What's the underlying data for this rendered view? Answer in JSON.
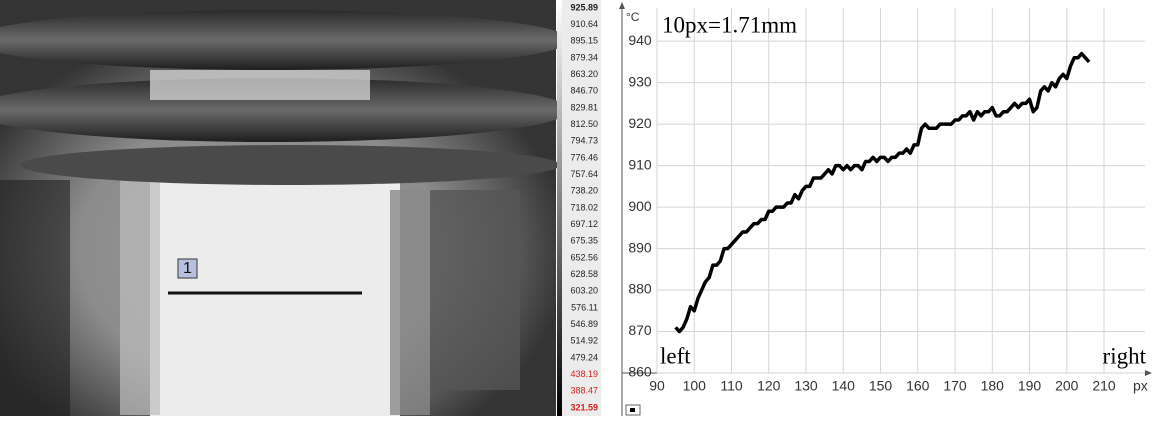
{
  "image": {
    "marker_label": "1"
  },
  "color_scale": {
    "labels": [
      "925.89",
      "910.64",
      "895.15",
      "879.34",
      "863.20",
      "846.70",
      "829.81",
      "812.50",
      "794.73",
      "776.46",
      "757.64",
      "738.20",
      "718.02",
      "697.12",
      "675.35",
      "652.56",
      "628.58",
      "603.20",
      "576.11",
      "546.89",
      "514.92",
      "479.24",
      "438.19",
      "388.47",
      "321.59"
    ]
  },
  "chart_data": {
    "type": "line",
    "x_unit": "px",
    "y_unit": "°C",
    "annotations": [
      "10px=1.71mm",
      "left",
      "right"
    ],
    "color": "#000000",
    "grid": true,
    "xlim": [
      90,
      221
    ],
    "xticks": [
      90,
      100,
      110,
      120,
      130,
      140,
      150,
      160,
      170,
      180,
      190,
      200,
      210
    ],
    "ylim": [
      860,
      948
    ],
    "yticks": [
      860,
      870,
      880,
      890,
      900,
      910,
      920,
      930,
      940
    ],
    "x": [
      95,
      96,
      97,
      98,
      99,
      100,
      101,
      102,
      103,
      104,
      105,
      106,
      107,
      108,
      109,
      110,
      111,
      112,
      113,
      114,
      115,
      116,
      117,
      118,
      119,
      120,
      121,
      122,
      123,
      124,
      125,
      126,
      127,
      128,
      129,
      130,
      131,
      132,
      133,
      134,
      135,
      136,
      137,
      138,
      139,
      140,
      141,
      142,
      143,
      144,
      145,
      146,
      147,
      148,
      149,
      150,
      151,
      152,
      153,
      154,
      155,
      156,
      157,
      158,
      159,
      160,
      161,
      162,
      163,
      164,
      165,
      166,
      167,
      168,
      169,
      170,
      171,
      172,
      173,
      174,
      175,
      176,
      177,
      178,
      179,
      180,
      181,
      182,
      183,
      184,
      185,
      186,
      187,
      188,
      189,
      190,
      191,
      192,
      193,
      194,
      195,
      196,
      197,
      198,
      199,
      200,
      201,
      202,
      203,
      204,
      205,
      206
    ],
    "values": [
      871,
      870,
      871,
      873,
      876,
      875,
      878,
      880,
      882,
      883,
      886,
      886,
      887,
      890,
      890,
      891,
      892,
      893,
      894,
      894,
      895,
      896,
      896,
      897,
      897,
      899,
      899,
      900,
      900,
      900,
      901,
      901,
      903,
      902,
      904,
      905,
      905,
      907,
      907,
      907,
      908,
      909,
      908,
      910,
      910,
      909,
      910,
      909,
      910,
      910,
      909,
      911,
      911,
      912,
      911,
      912,
      912,
      911,
      912,
      912,
      913,
      913,
      914,
      913,
      915,
      915,
      919,
      920,
      919,
      919,
      919,
      920,
      920,
      920,
      920,
      921,
      921,
      922,
      922,
      923,
      921,
      923,
      922,
      923,
      923,
      924,
      922,
      922,
      923,
      923,
      924,
      925,
      924,
      925,
      925,
      926,
      923,
      924,
      928,
      929,
      928,
      930,
      929,
      931,
      932,
      931,
      934,
      936,
      936,
      937,
      936,
      935
    ]
  }
}
